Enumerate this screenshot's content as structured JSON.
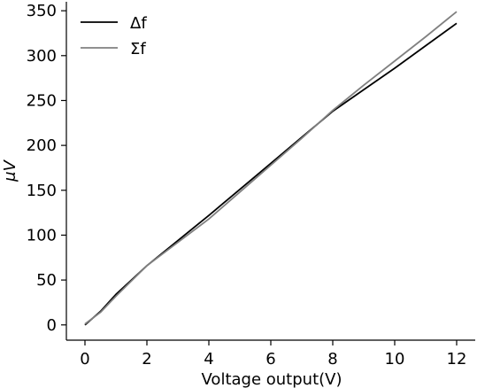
{
  "chart_data": {
    "type": "line",
    "title": "",
    "xlabel": "Voltage output(V)",
    "ylabel": "μV",
    "xlim": [
      -0.6,
      12.6
    ],
    "ylim": [
      -17,
      360
    ],
    "xticks": [
      0,
      2,
      4,
      6,
      8,
      10,
      12
    ],
    "yticks": [
      0,
      50,
      100,
      150,
      200,
      250,
      300,
      350
    ],
    "grid": false,
    "legend_position": "top-left",
    "spines": [
      "left",
      "bottom"
    ],
    "series": [
      {
        "name": "Δf",
        "color": "#000000",
        "x": [
          0,
          0.5,
          1,
          1.5,
          2,
          3,
          4,
          5,
          6,
          7,
          8,
          9,
          10,
          11,
          12
        ],
        "y": [
          0,
          15,
          34,
          50,
          66,
          94,
          122,
          151,
          180,
          209,
          238,
          262,
          286,
          311,
          336
        ]
      },
      {
        "name": "Σf",
        "color": "#808080",
        "x": [
          0,
          0.5,
          1,
          1.5,
          2,
          3,
          4,
          5,
          6,
          7,
          8,
          9,
          10,
          11,
          12
        ],
        "y": [
          1,
          14,
          32,
          49,
          66,
          92,
          118,
          148,
          178,
          208,
          239,
          267,
          294,
          321,
          349
        ]
      }
    ]
  }
}
